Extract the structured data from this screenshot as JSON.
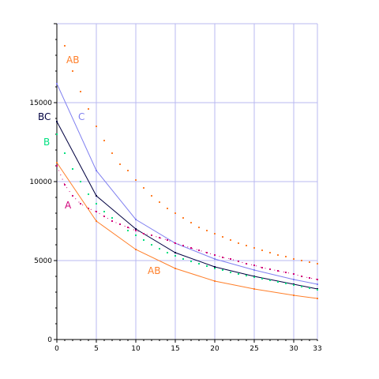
{
  "chart_data": {
    "type": "line",
    "title": "",
    "xlabel": "",
    "ylabel": "",
    "xlim": [
      0,
      33
    ],
    "ylim": [
      0,
      20000
    ],
    "grid": true,
    "xticks": [
      0,
      5,
      10,
      15,
      20,
      25,
      30,
      33
    ],
    "yticks": [
      0,
      5000,
      10000,
      15000
    ],
    "series": [
      {
        "name": "AB",
        "style": "dots",
        "color": "#ff7f2a",
        "label_at": [
          1.2,
          17500
        ],
        "x": [
          1,
          2,
          3,
          4,
          5,
          6,
          7,
          8,
          9,
          10,
          11,
          12,
          13,
          14,
          15,
          16,
          17,
          18,
          19,
          20,
          21,
          22,
          23,
          24,
          25,
          26,
          27,
          28,
          29,
          30,
          31,
          32,
          33
        ],
        "y": [
          18600,
          17000,
          15700,
          14600,
          13500,
          12600,
          11800,
          11100,
          10700,
          10100,
          9600,
          9100,
          8700,
          8300,
          8000,
          7700,
          7400,
          7100,
          6900,
          6700,
          6500,
          6300,
          6100,
          5950,
          5800,
          5650,
          5500,
          5350,
          5250,
          5100,
          5000,
          4900,
          4800
        ]
      },
      {
        "name": "C",
        "style": "line",
        "color": "#8080f0",
        "label_at": [
          2.7,
          13900
        ],
        "x": [
          0,
          5,
          10,
          15,
          20,
          25,
          30,
          33
        ],
        "y": [
          16200,
          10700,
          7600,
          6100,
          5100,
          4400,
          3800,
          3500
        ]
      },
      {
        "name": "BC",
        "style": "line",
        "color": "#000040",
        "label_at": [
          -2.4,
          13900
        ],
        "x": [
          0,
          5,
          10,
          15,
          20,
          25,
          30,
          33
        ],
        "y": [
          13800,
          9100,
          7000,
          5500,
          4600,
          4000,
          3500,
          3200
        ]
      },
      {
        "name": "B",
        "style": "dots",
        "color": "#00e080",
        "label_at": [
          -1.7,
          12300
        ],
        "x": [
          0,
          1,
          2,
          3,
          4,
          5,
          6,
          7,
          8,
          9,
          10,
          11,
          12,
          13,
          14,
          15,
          16,
          17,
          18,
          19,
          20,
          21,
          22,
          23,
          24,
          25,
          26,
          27,
          28,
          29,
          30,
          31,
          32,
          33
        ],
        "y": [
          13000,
          11800,
          10800,
          10000,
          9200,
          8600,
          8100,
          7700,
          7300,
          6900,
          6600,
          6300,
          6000,
          5750,
          5500,
          5300,
          5100,
          4950,
          4800,
          4650,
          4500,
          4400,
          4250,
          4150,
          4050,
          3950,
          3850,
          3750,
          3650,
          3550,
          3450,
          3350,
          3250,
          3150
        ]
      },
      {
        "name": "A",
        "style": "dash-dot",
        "color": "#d0007a",
        "label_at": [
          1.0,
          8300
        ],
        "x": [
          0,
          1,
          2,
          3,
          4,
          5,
          6,
          7,
          8,
          9,
          10,
          11,
          12,
          13,
          14,
          15,
          16,
          17,
          18,
          19,
          20,
          21,
          22,
          23,
          24,
          25,
          26,
          27,
          28,
          29,
          30,
          31,
          32,
          33
        ],
        "y": [
          11000,
          9800,
          9100,
          8600,
          8300,
          8100,
          7800,
          7500,
          7300,
          7100,
          6900,
          6700,
          6600,
          6450,
          6300,
          6100,
          5950,
          5800,
          5650,
          5500,
          5350,
          5200,
          5100,
          4950,
          4800,
          4700,
          4550,
          4450,
          4350,
          4250,
          4150,
          4000,
          3900,
          3800
        ]
      },
      {
        "name": "AB",
        "style": "line",
        "color": "#ff7f2a",
        "label_at": [
          11.5,
          4150
        ],
        "x": [
          0,
          5,
          10,
          15,
          20,
          25,
          30,
          33
        ],
        "y": [
          11200,
          7500,
          5700,
          4500,
          3700,
          3200,
          2800,
          2600
        ]
      }
    ]
  }
}
